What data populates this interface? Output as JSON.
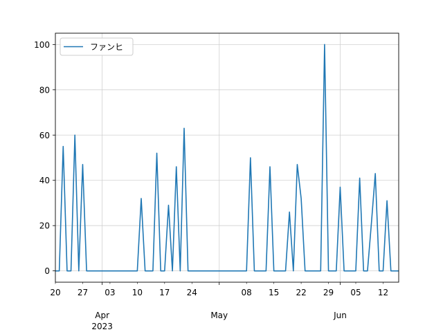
{
  "chart_data": {
    "type": "line",
    "title": "",
    "xlabel": "",
    "ylabel": "",
    "grid": true,
    "legend_placement": "top-left",
    "line_color": "#1f77b4",
    "x_range": [
      "2023-03-20",
      "2023-06-16"
    ],
    "ylim": [
      -5,
      105
    ],
    "y_ticks": [
      0,
      20,
      40,
      60,
      80,
      100
    ],
    "x_major_ticks": [
      {
        "date": "2023-04-01",
        "label": "Apr",
        "sublabel": "2023"
      },
      {
        "date": "2023-05-01",
        "label": "May",
        "sublabel": ""
      },
      {
        "date": "2023-06-01",
        "label": "Jun",
        "sublabel": ""
      }
    ],
    "x_minor_ticks": [
      {
        "date": "2023-03-20",
        "label": "20"
      },
      {
        "date": "2023-03-27",
        "label": "27"
      },
      {
        "date": "2023-04-03",
        "label": "03"
      },
      {
        "date": "2023-04-10",
        "label": "10"
      },
      {
        "date": "2023-04-17",
        "label": "17"
      },
      {
        "date": "2023-04-24",
        "label": "24"
      },
      {
        "date": "2023-05-08",
        "label": "08"
      },
      {
        "date": "2023-05-15",
        "label": "15"
      },
      {
        "date": "2023-05-22",
        "label": "22"
      },
      {
        "date": "2023-05-29",
        "label": "29"
      },
      {
        "date": "2023-06-05",
        "label": "05"
      },
      {
        "date": "2023-06-12",
        "label": "12"
      }
    ],
    "series": [
      {
        "name": "ファンヒ",
        "points": [
          [
            "2023-03-20",
            0
          ],
          [
            "2023-03-21",
            0
          ],
          [
            "2023-03-22",
            55
          ],
          [
            "2023-03-23",
            0
          ],
          [
            "2023-03-24",
            0
          ],
          [
            "2023-03-25",
            60
          ],
          [
            "2023-03-26",
            0
          ],
          [
            "2023-03-27",
            47
          ],
          [
            "2023-03-28",
            0
          ],
          [
            "2023-03-29",
            0
          ],
          [
            "2023-03-30",
            0
          ],
          [
            "2023-03-31",
            0
          ],
          [
            "2023-04-01",
            0
          ],
          [
            "2023-04-02",
            0
          ],
          [
            "2023-04-03",
            0
          ],
          [
            "2023-04-04",
            0
          ],
          [
            "2023-04-05",
            0
          ],
          [
            "2023-04-06",
            0
          ],
          [
            "2023-04-07",
            0
          ],
          [
            "2023-04-08",
            0
          ],
          [
            "2023-04-09",
            0
          ],
          [
            "2023-04-10",
            0
          ],
          [
            "2023-04-11",
            32
          ],
          [
            "2023-04-12",
            0
          ],
          [
            "2023-04-13",
            0
          ],
          [
            "2023-04-14",
            0
          ],
          [
            "2023-04-15",
            52
          ],
          [
            "2023-04-16",
            0
          ],
          [
            "2023-04-17",
            0
          ],
          [
            "2023-04-18",
            29
          ],
          [
            "2023-04-19",
            0
          ],
          [
            "2023-04-20",
            46
          ],
          [
            "2023-04-21",
            0
          ],
          [
            "2023-04-22",
            63
          ],
          [
            "2023-04-23",
            0
          ],
          [
            "2023-04-24",
            0
          ],
          [
            "2023-04-25",
            0
          ],
          [
            "2023-04-26",
            0
          ],
          [
            "2023-04-27",
            0
          ],
          [
            "2023-04-28",
            0
          ],
          [
            "2023-04-29",
            0
          ],
          [
            "2023-04-30",
            0
          ],
          [
            "2023-05-01",
            0
          ],
          [
            "2023-05-02",
            0
          ],
          [
            "2023-05-03",
            0
          ],
          [
            "2023-05-04",
            0
          ],
          [
            "2023-05-05",
            0
          ],
          [
            "2023-05-06",
            0
          ],
          [
            "2023-05-07",
            0
          ],
          [
            "2023-05-08",
            0
          ],
          [
            "2023-05-09",
            50
          ],
          [
            "2023-05-10",
            0
          ],
          [
            "2023-05-11",
            0
          ],
          [
            "2023-05-12",
            0
          ],
          [
            "2023-05-13",
            0
          ],
          [
            "2023-05-14",
            46
          ],
          [
            "2023-05-15",
            0
          ],
          [
            "2023-05-16",
            0
          ],
          [
            "2023-05-17",
            0
          ],
          [
            "2023-05-18",
            0
          ],
          [
            "2023-05-19",
            26
          ],
          [
            "2023-05-20",
            0
          ],
          [
            "2023-05-21",
            47
          ],
          [
            "2023-05-22",
            32
          ],
          [
            "2023-05-23",
            0
          ],
          [
            "2023-05-24",
            0
          ],
          [
            "2023-05-25",
            0
          ],
          [
            "2023-05-26",
            0
          ],
          [
            "2023-05-27",
            0
          ],
          [
            "2023-05-28",
            100
          ],
          [
            "2023-05-29",
            0
          ],
          [
            "2023-05-30",
            0
          ],
          [
            "2023-05-31",
            0
          ],
          [
            "2023-06-01",
            37
          ],
          [
            "2023-06-02",
            0
          ],
          [
            "2023-06-03",
            0
          ],
          [
            "2023-06-04",
            0
          ],
          [
            "2023-06-05",
            0
          ],
          [
            "2023-06-06",
            41
          ],
          [
            "2023-06-07",
            0
          ],
          [
            "2023-06-08",
            0
          ],
          [
            "2023-06-09",
            21
          ],
          [
            "2023-06-10",
            43
          ],
          [
            "2023-06-11",
            0
          ],
          [
            "2023-06-12",
            0
          ],
          [
            "2023-06-13",
            31
          ],
          [
            "2023-06-14",
            0
          ],
          [
            "2023-06-15",
            0
          ],
          [
            "2023-06-16",
            0
          ]
        ]
      }
    ]
  }
}
